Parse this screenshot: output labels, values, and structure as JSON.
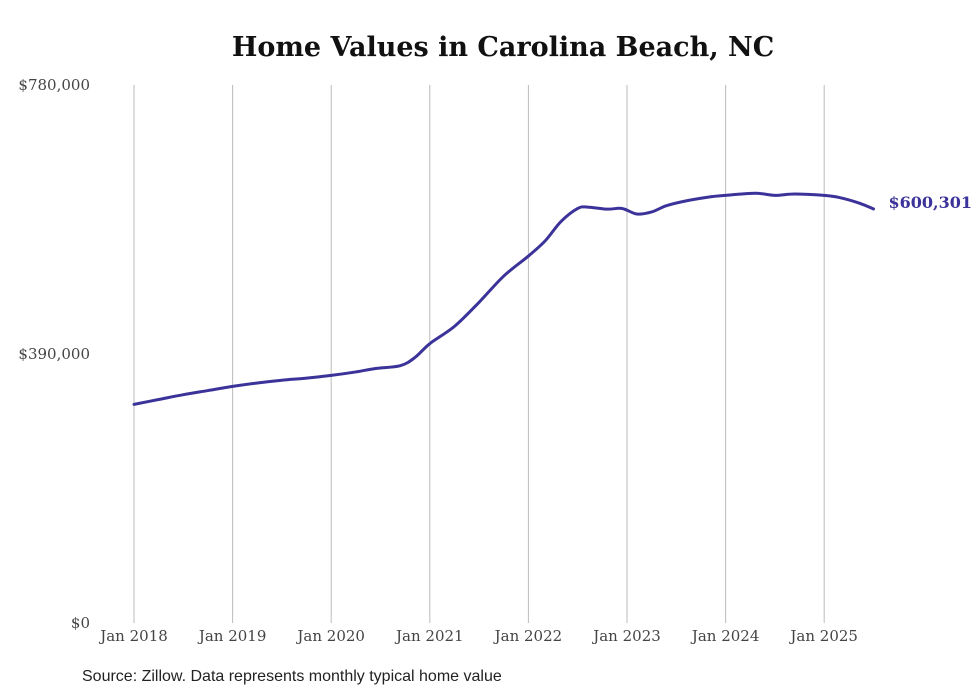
{
  "chart_data": {
    "type": "line",
    "title": "Home Values in Carolina Beach, NC",
    "xlabel": "",
    "ylabel": "",
    "ylim": [
      0,
      780000
    ],
    "yticks": [
      0,
      390000,
      780000
    ],
    "ytick_labels": [
      "$0",
      "$390,000",
      "$780,000"
    ],
    "xticks": [
      2018,
      2019,
      2020,
      2021,
      2022,
      2023,
      2024,
      2025
    ],
    "xtick_labels": [
      "Jan 2018",
      "Jan 2019",
      "Jan 2020",
      "Jan 2021",
      "Jan 2022",
      "Jan 2023",
      "Jan 2024",
      "Jan 2025"
    ],
    "grid": "vertical",
    "series": [
      {
        "name": "Typical home value",
        "color": "#3b3399",
        "x": [
          2018.0,
          2018.25,
          2018.5,
          2018.75,
          2019.0,
          2019.25,
          2019.5,
          2019.75,
          2020.0,
          2020.25,
          2020.45,
          2020.7,
          2020.85,
          2021.0,
          2021.25,
          2021.5,
          2021.75,
          2022.0,
          2022.17,
          2022.33,
          2022.5,
          2022.6,
          2022.8,
          2022.95,
          2023.1,
          2023.25,
          2023.4,
          2023.6,
          2023.85,
          2024.0,
          2024.3,
          2024.5,
          2024.7,
          2025.0,
          2025.15,
          2025.35,
          2025.5
        ],
        "y": [
          317000,
          324000,
          331000,
          337000,
          343000,
          348000,
          352000,
          355000,
          359000,
          364000,
          369000,
          373000,
          385000,
          405000,
          430000,
          465000,
          503000,
          532000,
          554000,
          582000,
          601000,
          603000,
          600000,
          601000,
          593000,
          596000,
          605000,
          612000,
          618000,
          620000,
          623000,
          620000,
          622000,
          620000,
          617000,
          609000,
          600301
        ]
      }
    ],
    "end_label": "$600,301",
    "source": "Source: Zillow. Data represents monthly typical home value"
  }
}
